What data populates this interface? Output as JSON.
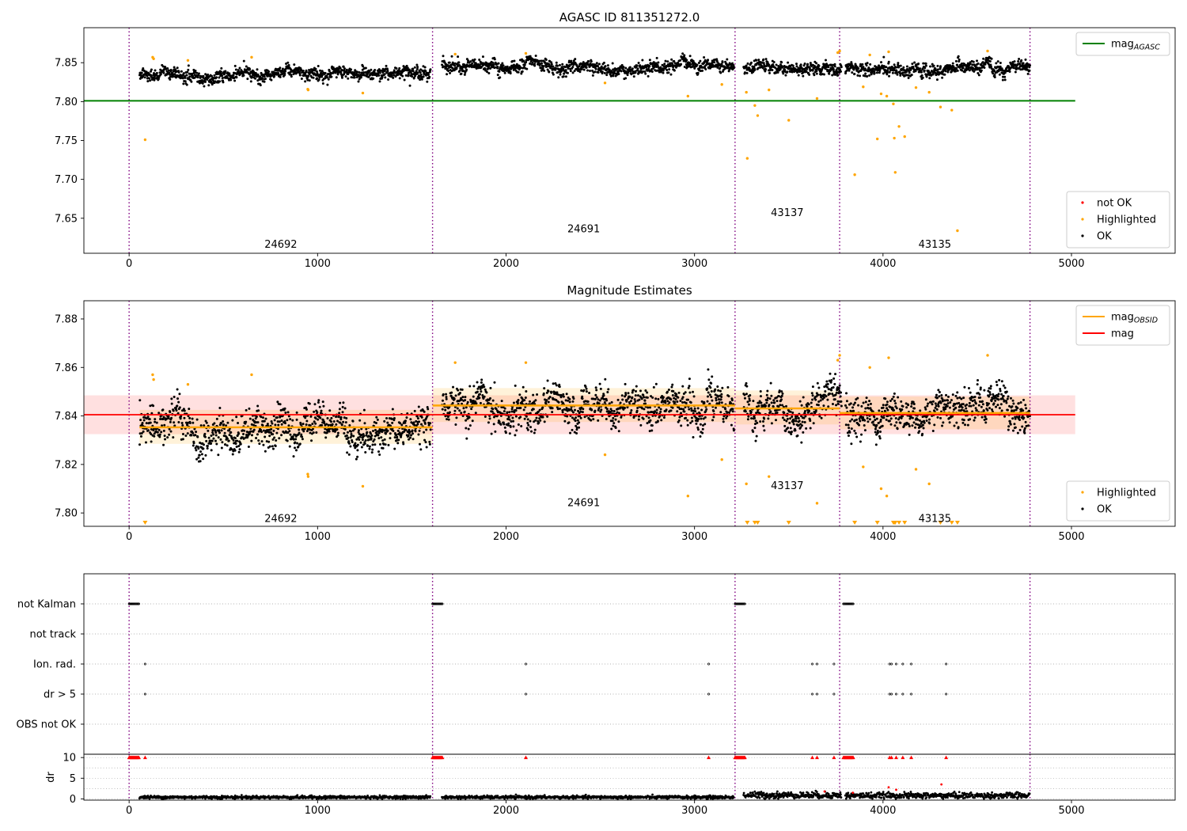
{
  "chart_data": [
    {
      "type": "scatter",
      "title": "AGASC ID 811351272.0",
      "xlim": [
        -240,
        5550
      ],
      "ylim": [
        7.605,
        7.895
      ],
      "xticks": [
        0,
        1000,
        2000,
        3000,
        4000,
        5000
      ],
      "yticks": [
        7.65,
        7.7,
        7.75,
        7.8,
        7.85
      ],
      "grid": false,
      "legends": [
        {
          "placement": "top-right",
          "entries": [
            {
              "label": "mag",
              "sub": "AGASC",
              "color": "#008000",
              "kind": "line"
            }
          ]
        },
        {
          "placement": "bottom-right",
          "entries": [
            {
              "label": "not OK",
              "color": "#ff0000",
              "kind": "point"
            },
            {
              "label": "Highlighted",
              "color": "#ffa500",
              "kind": "point"
            },
            {
              "label": "OK",
              "color": "#000000",
              "kind": "point"
            }
          ]
        }
      ],
      "vlines": [
        0,
        1610,
        3215,
        3770,
        4780
      ],
      "obsid_labels": [
        {
          "text": "24692",
          "x": 805,
          "y": 7.617
        },
        {
          "text": "24691",
          "x": 2412,
          "y": 7.637
        },
        {
          "text": "43137",
          "x": 3492,
          "y": 7.658
        },
        {
          "text": "43135",
          "x": 4275,
          "y": 7.617
        }
      ],
      "hlines": [
        {
          "name": "mag_AGASC",
          "y": 7.801,
          "x": [
            -240,
            5020
          ],
          "color": "#008000"
        }
      ],
      "ok_segments": [
        {
          "x": [
            55,
            1600
          ],
          "mean": 7.835,
          "spread": 0.007
        },
        {
          "x": [
            1660,
            3210
          ],
          "mean": 7.845,
          "spread": 0.007
        },
        {
          "x": [
            3260,
            3780
          ],
          "mean": 7.843,
          "spread": 0.007
        },
        {
          "x": [
            3800,
            4780
          ],
          "mean": 7.841,
          "spread": 0.007
        }
      ],
      "highlighted": [
        [
          85,
          7.751
        ],
        [
          125,
          7.857
        ],
        [
          130,
          7.855
        ],
        [
          312,
          7.853
        ],
        [
          650,
          7.857
        ],
        [
          948,
          7.816
        ],
        [
          950,
          7.815
        ],
        [
          1240,
          7.811
        ],
        [
          1730,
          7.861
        ],
        [
          2105,
          7.862
        ],
        [
          2525,
          7.824
        ],
        [
          2965,
          7.807
        ],
        [
          3145,
          7.822
        ],
        [
          3275,
          7.812
        ],
        [
          3280,
          7.727
        ],
        [
          3320,
          7.795
        ],
        [
          3335,
          7.782
        ],
        [
          3395,
          7.815
        ],
        [
          3500,
          7.776
        ],
        [
          3650,
          7.804
        ],
        [
          3760,
          7.863
        ],
        [
          3770,
          7.865
        ],
        [
          3850,
          7.706
        ],
        [
          3895,
          7.819
        ],
        [
          3930,
          7.86
        ],
        [
          3970,
          7.752
        ],
        [
          3990,
          7.81
        ],
        [
          4020,
          7.807
        ],
        [
          4030,
          7.864
        ],
        [
          4055,
          7.797
        ],
        [
          4060,
          7.753
        ],
        [
          4065,
          7.709
        ],
        [
          4085,
          7.768
        ],
        [
          4115,
          7.755
        ],
        [
          4175,
          7.818
        ],
        [
          4245,
          7.812
        ],
        [
          4305,
          7.793
        ],
        [
          4365,
          7.789
        ],
        [
          4395,
          7.634
        ],
        [
          4555,
          7.865
        ]
      ]
    },
    {
      "type": "scatter",
      "title": "Magnitude Estimates",
      "xlim": [
        -240,
        5550
      ],
      "ylim": [
        7.7945,
        7.8875
      ],
      "xticks": [
        0,
        1000,
        2000,
        3000,
        4000,
        5000
      ],
      "yticks": [
        7.8,
        7.82,
        7.84,
        7.86,
        7.88
      ],
      "grid": false,
      "legends": [
        {
          "placement": "top-right",
          "entries": [
            {
              "label": "mag",
              "sub": "OBSID",
              "color": "#ffa500",
              "kind": "line"
            },
            {
              "label": "mag",
              "color": "#ff0000",
              "kind": "line"
            }
          ]
        },
        {
          "placement": "bottom-right",
          "entries": [
            {
              "label": "Highlighted",
              "color": "#ffa500",
              "kind": "point"
            },
            {
              "label": "OK",
              "color": "#000000",
              "kind": "point"
            }
          ]
        }
      ],
      "vlines": [
        0,
        1610,
        3215,
        3770,
        4780
      ],
      "obsid_labels": [
        {
          "text": "24692",
          "x": 805,
          "y": 7.798
        },
        {
          "text": "24691",
          "x": 2412,
          "y": 7.8045
        },
        {
          "text": "43137",
          "x": 3492,
          "y": 7.8115
        },
        {
          "text": "43135",
          "x": 4275,
          "y": 7.798
        }
      ],
      "mag": {
        "value": 7.8405,
        "band": [
          7.8325,
          7.8485
        ],
        "x": [
          -240,
          5020
        ],
        "color": "#ff0000"
      },
      "mag_obsid": [
        {
          "x": [
            55,
            1610
          ],
          "value": 7.8353,
          "band": [
            7.8285,
            7.8425
          ]
        },
        {
          "x": [
            1610,
            3215
          ],
          "value": 7.8443,
          "band": [
            7.8375,
            7.8515
          ]
        },
        {
          "x": [
            3215,
            3770
          ],
          "value": 7.8431,
          "band": [
            7.8365,
            7.8505
          ]
        },
        {
          "x": [
            3770,
            4780
          ],
          "value": 7.8412,
          "band": [
            7.8345,
            7.848
          ]
        }
      ],
      "ok_segments": [
        {
          "x": [
            55,
            1600
          ],
          "mean": 7.835,
          "spread": 0.0065
        },
        {
          "x": [
            1660,
            3210
          ],
          "mean": 7.844,
          "spread": 0.0065
        },
        {
          "x": [
            3260,
            3780
          ],
          "mean": 7.843,
          "spread": 0.0065
        },
        {
          "x": [
            3800,
            4780
          ],
          "mean": 7.841,
          "spread": 0.0065
        }
      ],
      "highlighted": [
        [
          125,
          7.857
        ],
        [
          130,
          7.855
        ],
        [
          312,
          7.853
        ],
        [
          650,
          7.857
        ],
        [
          948,
          7.816
        ],
        [
          950,
          7.815
        ],
        [
          1240,
          7.811
        ],
        [
          1730,
          7.862
        ],
        [
          2105,
          7.862
        ],
        [
          2525,
          7.824
        ],
        [
          2965,
          7.807
        ],
        [
          3145,
          7.822
        ],
        [
          3275,
          7.812
        ],
        [
          3395,
          7.815
        ],
        [
          3650,
          7.804
        ],
        [
          3760,
          7.863
        ],
        [
          3770,
          7.865
        ],
        [
          3895,
          7.819
        ],
        [
          3930,
          7.86
        ],
        [
          3990,
          7.81
        ],
        [
          4020,
          7.807
        ],
        [
          4030,
          7.864
        ],
        [
          4175,
          7.818
        ],
        [
          4245,
          7.812
        ],
        [
          4555,
          7.865
        ]
      ],
      "clipped_low": [
        85,
        3280,
        3320,
        3335,
        3500,
        3850,
        3970,
        4055,
        4060,
        4065,
        4085,
        4115,
        4305,
        4365,
        4395
      ]
    },
    {
      "type": "scatter",
      "xlim": [
        -240,
        5550
      ],
      "xticks": [
        0,
        1000,
        2000,
        3000,
        4000,
        5000
      ],
      "flag_rows": [
        "not Kalman",
        "not track",
        "Ion. rad.",
        "dr > 5",
        "OBS not OK"
      ],
      "vlines": [
        0,
        1610,
        3215,
        3770,
        4780
      ],
      "flag_points": {
        "not Kalman": [
          [
            0,
            55
          ],
          [
            1610,
            1665
          ],
          [
            3215,
            3270
          ],
          [
            3790,
            3845
          ]
        ],
        "Ion. rad.": [
          85,
          2105,
          3075,
          3625,
          3650,
          3740,
          4035,
          4045,
          4070,
          4105,
          4150,
          4335
        ],
        "dr > 5": [
          85,
          2105,
          3075,
          3625,
          3650,
          3740,
          4035,
          4045,
          4070,
          4105,
          4150,
          4335
        ]
      },
      "dr": {
        "ylabel": "dr",
        "ylim": [
          -0.3,
          10.8
        ],
        "yticks": [
          0,
          5,
          10
        ],
        "capped_at_10": [
          85,
          2105,
          3075,
          3625,
          3650,
          3740,
          4035,
          4045,
          4070,
          4105,
          4150,
          4335
        ],
        "capped_ranges": [
          [
            0,
            55
          ],
          [
            1610,
            1665
          ],
          [
            3215,
            3270
          ],
          [
            3790,
            3845
          ]
        ],
        "outliers": [
          [
            3690,
            1.8
          ],
          [
            3840,
            1.5
          ],
          [
            4030,
            2.8
          ],
          [
            4070,
            2.2
          ],
          [
            4310,
            3.5
          ]
        ],
        "segments": [
          {
            "x": [
              55,
              1600
            ],
            "mean": 0.4
          },
          {
            "x": [
              1660,
              3210
            ],
            "mean": 0.4
          },
          {
            "x": [
              3260,
              3780
            ],
            "mean": 0.9
          },
          {
            "x": [
              3800,
              4780
            ],
            "mean": 0.8
          }
        ]
      }
    }
  ]
}
